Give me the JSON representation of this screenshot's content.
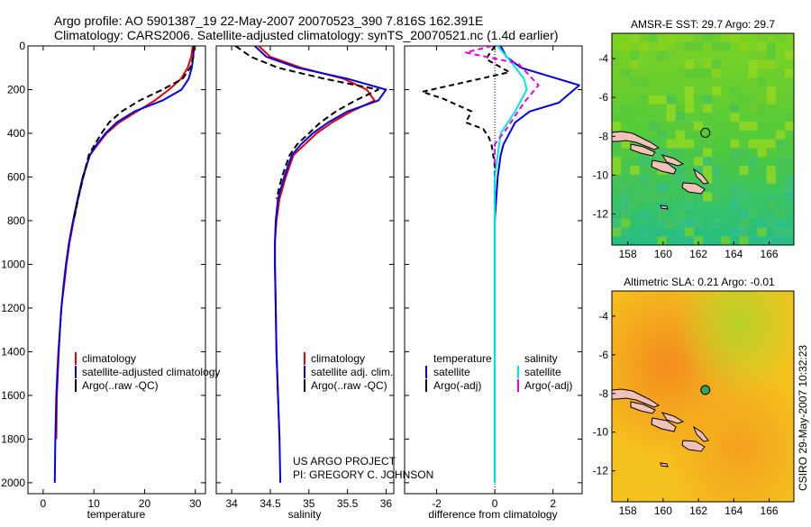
{
  "header": {
    "line1": "Argo profile: AO 5901387_19 22-May-2007 20070523_390 7.816S 162.391E",
    "line2": "Climatology: CARS2006. Satellite-adjusted climatology: synTS_20070521.nc (1.4d earlier)"
  },
  "side_label": "CSIRO 29-May-2007 10:32:23",
  "chart_data": [
    {
      "id": "temperature",
      "type": "line",
      "xlabel": "temperature",
      "ylabel": "",
      "xlim": [
        -3,
        32
      ],
      "ylim": [
        2050,
        0
      ],
      "xticks": [
        0,
        10,
        20,
        30
      ],
      "yticks": [
        0,
        200,
        400,
        600,
        800,
        1000,
        1200,
        1400,
        1600,
        1800,
        2000
      ],
      "legend": [
        "climatology",
        "satellite-adjusted climatology",
        "Argo(..raw -QC)"
      ],
      "series": [
        {
          "name": "climatology",
          "color": "#e60000",
          "dash": "",
          "x": [
            29.5,
            29.2,
            28.5,
            27.2,
            24.8,
            22.0,
            18.5,
            15.0,
            12.5,
            10.8,
            9.2,
            7.9,
            6.9,
            6.0,
            5.2,
            4.6,
            4.1,
            3.6,
            3.3,
            3.1,
            2.9,
            2.7,
            2.6
          ],
          "y": [
            0,
            50,
            100,
            150,
            200,
            250,
            300,
            350,
            400,
            450,
            500,
            600,
            700,
            800,
            900,
            1000,
            1100,
            1200,
            1300,
            1400,
            1500,
            1600,
            1800
          ]
        },
        {
          "name": "satellite-adjusted climatology",
          "color": "#0000e6",
          "dash": "",
          "x": [
            29.7,
            29.6,
            29.3,
            28.7,
            27.3,
            23.5,
            18.0,
            14.5,
            12.3,
            10.6,
            9.2,
            7.8,
            6.8,
            5.9,
            5.1,
            4.5,
            4.0,
            3.6,
            3.3,
            3.0,
            2.8,
            2.6,
            2.4,
            2.3
          ],
          "y": [
            0,
            50,
            100,
            150,
            200,
            250,
            300,
            350,
            400,
            450,
            500,
            600,
            700,
            800,
            900,
            1000,
            1100,
            1200,
            1300,
            1400,
            1500,
            1600,
            1800,
            2000
          ]
        },
        {
          "name": "Argo(..raw -QC)",
          "color": "#000000",
          "dash": "7,4",
          "x": [
            29.7,
            29.6,
            29.0,
            27.5,
            23.5,
            19.0,
            15.5,
            13.0,
            11.5,
            10.2,
            9.0,
            7.9,
            6.9,
            6.0
          ],
          "y": [
            0,
            50,
            100,
            150,
            200,
            250,
            300,
            350,
            400,
            450,
            500,
            600,
            700,
            800
          ]
        }
      ]
    },
    {
      "id": "salinity",
      "type": "line",
      "xlabel": "salinity",
      "xlim": [
        33.8,
        36.1
      ],
      "ylim": [
        2050,
        0
      ],
      "xticks": [
        34,
        34.5,
        35,
        35.5,
        36
      ],
      "yticks": [
        0,
        200,
        400,
        600,
        800,
        1000,
        1200,
        1400,
        1600,
        1800,
        2000
      ],
      "legend": [
        "climatology",
        "satellite adj. clim.",
        "Argo(..raw -QC)"
      ],
      "annotations": [
        "US ARGO PROJECT",
        "PI: GREGORY C. JOHNSON"
      ],
      "series": [
        {
          "name": "climatology",
          "color": "#e60000",
          "dash": "",
          "x": [
            34.35,
            34.5,
            34.9,
            35.45,
            35.75,
            35.85,
            35.55,
            35.3,
            35.1,
            34.95,
            34.8,
            34.7,
            34.62,
            34.58,
            34.56,
            34.56,
            34.57,
            34.58,
            34.6,
            34.62
          ],
          "y": [
            0,
            50,
            100,
            150,
            200,
            250,
            300,
            350,
            400,
            450,
            500,
            600,
            700,
            800,
            900,
            1000,
            1200,
            1400,
            1600,
            1800
          ]
        },
        {
          "name": "satellite adj. clim.",
          "color": "#0000e6",
          "dash": "",
          "x": [
            34.3,
            34.45,
            34.85,
            35.5,
            36.0,
            35.9,
            35.5,
            35.25,
            35.05,
            34.9,
            34.78,
            34.68,
            34.6,
            34.57,
            34.56,
            34.56,
            34.57,
            34.58,
            34.6,
            34.62,
            34.63
          ],
          "y": [
            0,
            50,
            100,
            150,
            200,
            250,
            300,
            350,
            400,
            450,
            500,
            600,
            700,
            800,
            900,
            1000,
            1200,
            1400,
            1600,
            1800,
            2000
          ]
        },
        {
          "name": "Argo(..raw -QC)",
          "color": "#000000",
          "dash": "7,4",
          "x": [
            34.05,
            34.25,
            34.6,
            35.2,
            35.9,
            35.6,
            35.35,
            35.15,
            35.0,
            34.85,
            34.75,
            34.65,
            34.58
          ],
          "y": [
            0,
            50,
            100,
            150,
            200,
            250,
            300,
            350,
            400,
            450,
            500,
            600,
            700
          ]
        }
      ]
    },
    {
      "id": "difference",
      "type": "line",
      "xlabel": "difference from climatology",
      "xlim": [
        -3.1,
        3.0
      ],
      "ylim": [
        2050,
        0
      ],
      "xticks": [
        -2,
        0,
        2
      ],
      "yticks": [
        0,
        200,
        400,
        600,
        800,
        1000,
        1200,
        1400,
        1600,
        1800,
        2000
      ],
      "legend": [
        "temperature",
        "satellite",
        "Argo(-adj)",
        "salinity",
        "satellite",
        "Argo(-adj)"
      ],
      "series": [
        {
          "name": "temperature satellite",
          "color": "#0000e6",
          "dash": "",
          "x": [
            0.2,
            0.4,
            0.9,
            2.9,
            2.2,
            1.2,
            0.7,
            0.5,
            0.3,
            0.2,
            0.1,
            0.05,
            0,
            0,
            0,
            0
          ],
          "y": [
            0,
            50,
            100,
            180,
            260,
            300,
            350,
            400,
            450,
            500,
            600,
            700,
            800,
            1000,
            1500,
            2000
          ]
        },
        {
          "name": "temperature Argo(-adj)",
          "color": "#000000",
          "dash": "6,4",
          "x": [
            0.0,
            -0.3,
            0.5,
            -2.5,
            -1.8,
            -0.8,
            -1.0,
            -0.4,
            -0.2,
            -0.1,
            0,
            0
          ],
          "y": [
            0,
            60,
            120,
            210,
            240,
            300,
            350,
            380,
            420,
            460,
            550,
            750
          ]
        },
        {
          "name": "salinity satellite",
          "color": "#00e6e6",
          "dash": "",
          "x": [
            0.1,
            0.6,
            1.0,
            1.1,
            0.7,
            0.2,
            0,
            0,
            0,
            0
          ],
          "y": [
            0,
            80,
            150,
            200,
            300,
            400,
            600,
            800,
            1200,
            2000
          ]
        },
        {
          "name": "salinity Argo(-adj)",
          "color": "#e600e6",
          "dash": "6,4",
          "x": [
            -0.1,
            -1.0,
            0.8,
            1.5,
            1.0,
            0.4,
            0,
            0
          ],
          "y": [
            0,
            30,
            80,
            180,
            260,
            380,
            450,
            550
          ]
        }
      ]
    },
    {
      "id": "sst-map",
      "type": "heatmap",
      "title": "AMSR-E SST: 29.7 Argo: 29.7",
      "xticks": [
        158,
        160,
        162,
        164,
        166
      ],
      "yticks": [
        -4,
        -6,
        -8,
        -10,
        -12
      ],
      "xlim": [
        157.1,
        167.4
      ],
      "ylim": [
        -13.6,
        -2.7
      ],
      "marker": {
        "lon": 162.39,
        "lat": -7.82
      }
    },
    {
      "id": "sla-map",
      "type": "heatmap",
      "title": "Altimetric SLA: 0.21 Argo: -0.01",
      "xticks": [
        158,
        160,
        162,
        164,
        166
      ],
      "yticks": [
        -4,
        -6,
        -8,
        -10,
        -12
      ],
      "xlim": [
        157.1,
        167.4
      ],
      "ylim": [
        -13.6,
        -2.7
      ],
      "marker": {
        "lon": 162.39,
        "lat": -7.82
      }
    }
  ]
}
